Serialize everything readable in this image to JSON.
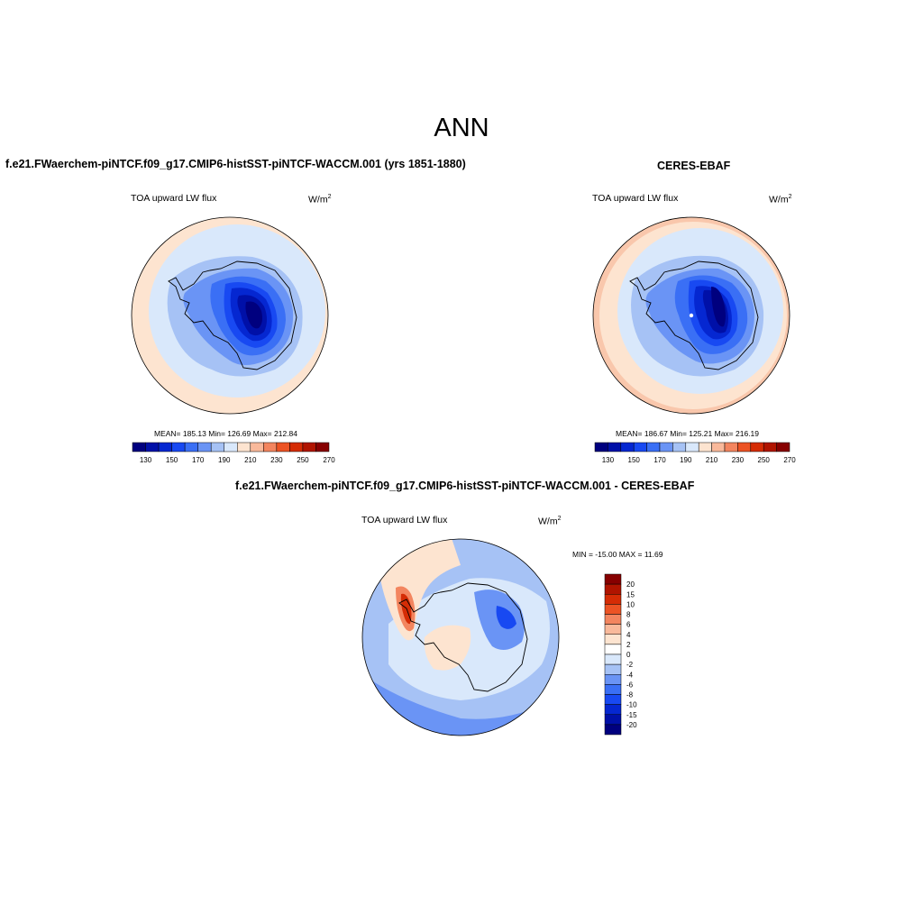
{
  "season": "ANN",
  "panels": {
    "model": {
      "title": "f.e21.FWaerchem-piNTCF.f09_g17.CMIP6-histSST-piNTCF-WACCM.001 (yrs 1851-1880)",
      "variable": "TOA upward LW flux",
      "units_base": "W/m",
      "units_exp": "2",
      "stats": "MEAN= 185.13  Min= 126.69  Max= 212.84"
    },
    "obs": {
      "title": "CERES-EBAF",
      "variable": "TOA upward LW flux",
      "units_base": "W/m",
      "units_exp": "2",
      "stats": "MEAN= 186.67  Min= 125.21  Max= 216.19"
    },
    "diff": {
      "title": "f.e21.FWaerchem-piNTCF.f09_g17.CMIP6-histSST-piNTCF-WACCM.001 - CERES-EBAF",
      "variable": "TOA upward LW flux",
      "units_base": "W/m",
      "units_exp": "2",
      "stats": "MIN = -15.00 MAX =  11.69"
    }
  },
  "colorbar_main": {
    "labels": [
      "130",
      "150",
      "170",
      "190",
      "210",
      "230",
      "250",
      "270"
    ],
    "colors": [
      "#00007f",
      "#0010a8",
      "#0527d1",
      "#1849f2",
      "#3a6ff5",
      "#6a94f5",
      "#a6c2f5",
      "#d9e8fb",
      "#fde4d0",
      "#f9b99b",
      "#f3855f",
      "#ec5324",
      "#d52c05",
      "#b01400",
      "#870000"
    ]
  },
  "colorbar_diff": {
    "labels": [
      "20",
      "15",
      "10",
      "8",
      "6",
      "4",
      "2",
      "0",
      "-2",
      "-4",
      "-6",
      "-8",
      "-10",
      "-15",
      "-20"
    ],
    "colors": [
      "#870000",
      "#b01400",
      "#d52c05",
      "#ec5324",
      "#f3855f",
      "#f9b99b",
      "#fde4d0",
      "#ffffff",
      "#d9e8fb",
      "#a6c2f5",
      "#6a94f5",
      "#3a6ff5",
      "#1849f2",
      "#0527d1",
      "#0010a8",
      "#00007f"
    ]
  },
  "map_colors": {
    "ocean_warm": "#fde4d0",
    "ocean_warm2": "#f9c7ac",
    "ocean_cool": "#d9e8fb",
    "ocean_cool2": "#a6c2f5",
    "ice_1": "#6a94f5",
    "ice_2": "#3a6ff5",
    "ice_3": "#1849f2",
    "ice_4": "#0527d1",
    "ice_5": "#0010a8",
    "ice_6": "#00007f"
  }
}
